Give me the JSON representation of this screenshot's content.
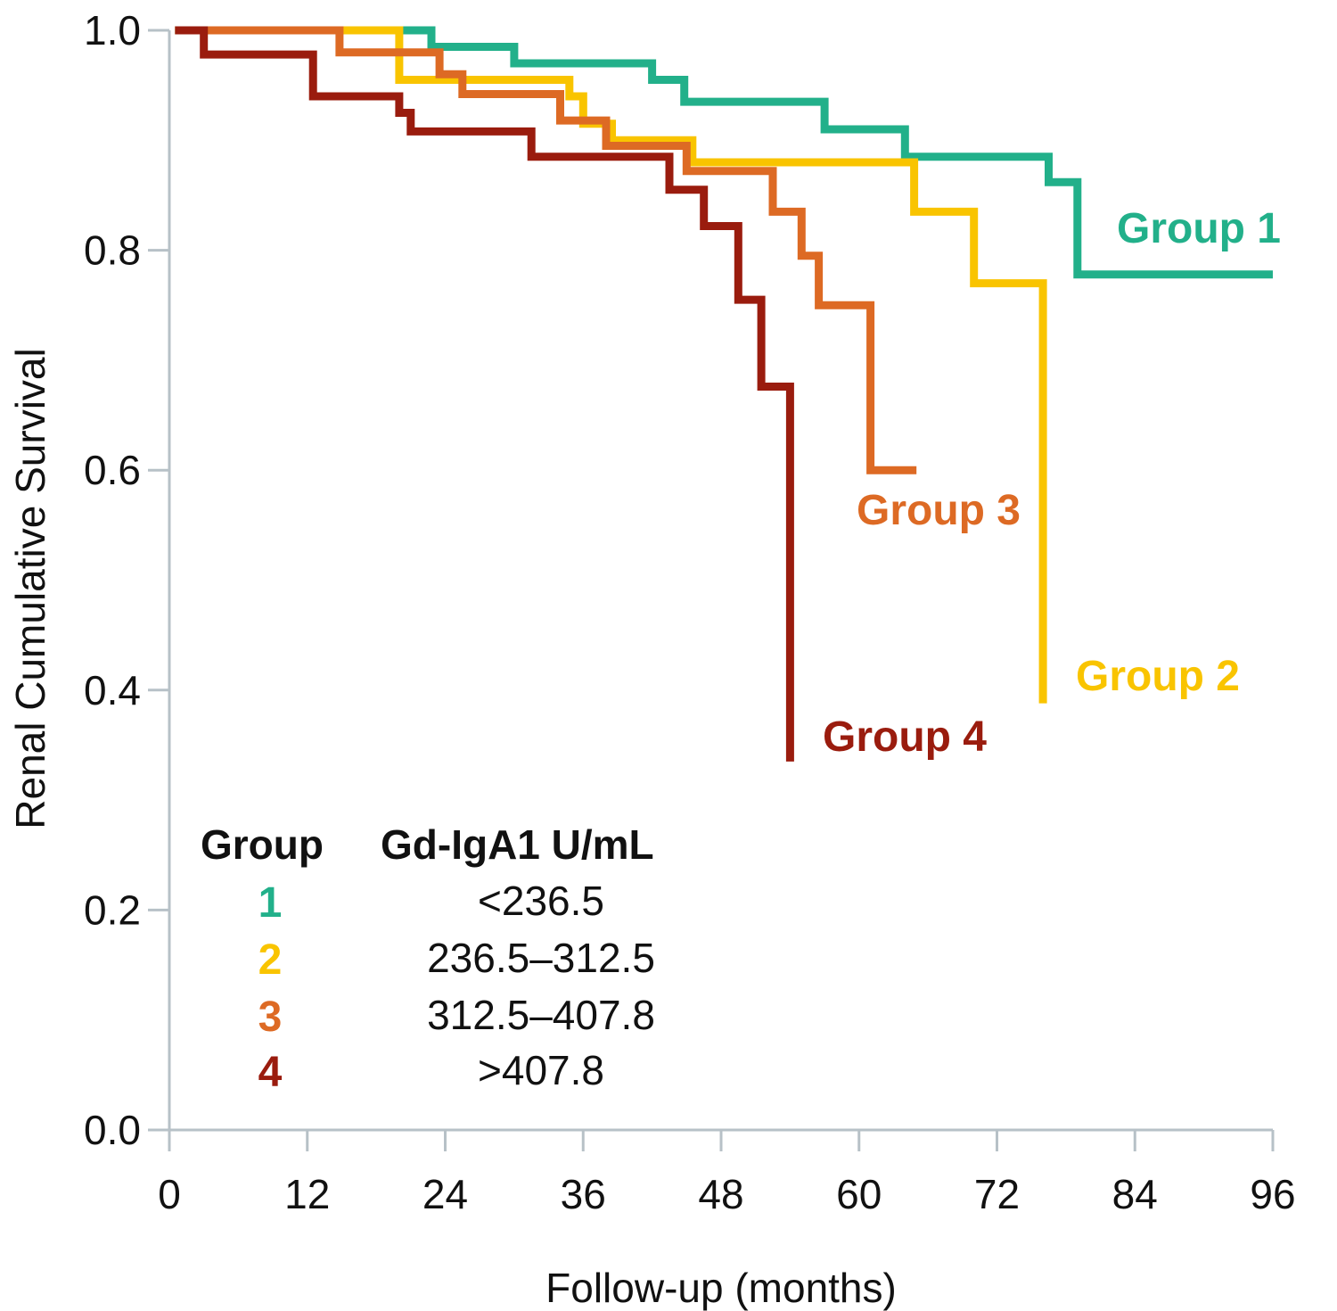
{
  "chart_data": {
    "type": "line",
    "subtype": "kaplan-meier-step",
    "title": "",
    "xlabel": "Follow-up (months)",
    "ylabel": "Renal Cumulative Survival",
    "xlim": [
      0,
      96
    ],
    "ylim": [
      0,
      1.0
    ],
    "xticks": [
      0,
      12,
      24,
      36,
      48,
      60,
      72,
      84,
      96
    ],
    "xtick_labels": [
      "0",
      "12",
      "24",
      "36",
      "48",
      "60",
      "72",
      "84",
      "96"
    ],
    "yticks": [
      0,
      0.2,
      0.4,
      0.6,
      0.8,
      1.0
    ],
    "ytick_labels": [
      "0.0",
      "0.2",
      "0.4",
      "0.6",
      "0.8",
      "1.0"
    ],
    "grid": false,
    "series": [
      {
        "name": "Group 1",
        "label": "Group 1",
        "color": "#22b08a",
        "points": [
          [
            0.5,
            1.0
          ],
          [
            22.8,
            1.0
          ],
          [
            22.8,
            0.985
          ],
          [
            30,
            0.985
          ],
          [
            30,
            0.97
          ],
          [
            42,
            0.97
          ],
          [
            42,
            0.955
          ],
          [
            44.8,
            0.955
          ],
          [
            44.8,
            0.935
          ],
          [
            57,
            0.935
          ],
          [
            57,
            0.91
          ],
          [
            64,
            0.91
          ],
          [
            64,
            0.885
          ],
          [
            76.5,
            0.885
          ],
          [
            76.5,
            0.862
          ],
          [
            79,
            0.862
          ],
          [
            79,
            0.778
          ],
          [
            96,
            0.778
          ]
        ]
      },
      {
        "name": "Group 2",
        "label": "Group 2",
        "color": "#f9c400",
        "points": [
          [
            0.5,
            1.0
          ],
          [
            20,
            1.0
          ],
          [
            20,
            0.955
          ],
          [
            34.8,
            0.955
          ],
          [
            34.8,
            0.94
          ],
          [
            36,
            0.94
          ],
          [
            36,
            0.915
          ],
          [
            38.5,
            0.915
          ],
          [
            38.5,
            0.9
          ],
          [
            45.5,
            0.9
          ],
          [
            45.5,
            0.88
          ],
          [
            64.8,
            0.88
          ],
          [
            64.8,
            0.835
          ],
          [
            70,
            0.835
          ],
          [
            70,
            0.77
          ],
          [
            76,
            0.77
          ],
          [
            76,
            0.388
          ]
        ]
      },
      {
        "name": "Group 3",
        "label": "Group 3",
        "color": "#dd6a24",
        "points": [
          [
            0.5,
            1.0
          ],
          [
            14.8,
            1.0
          ],
          [
            14.8,
            0.98
          ],
          [
            23.5,
            0.98
          ],
          [
            23.5,
            0.96
          ],
          [
            25.5,
            0.96
          ],
          [
            25.5,
            0.942
          ],
          [
            34,
            0.942
          ],
          [
            34,
            0.918
          ],
          [
            38,
            0.918
          ],
          [
            38,
            0.895
          ],
          [
            45,
            0.895
          ],
          [
            45,
            0.872
          ],
          [
            52.5,
            0.872
          ],
          [
            52.5,
            0.835
          ],
          [
            55,
            0.835
          ],
          [
            55,
            0.795
          ],
          [
            56.5,
            0.795
          ],
          [
            56.5,
            0.75
          ],
          [
            61,
            0.75
          ],
          [
            61,
            0.6
          ],
          [
            65,
            0.6
          ]
        ]
      },
      {
        "name": "Group 4",
        "label": "Group 4",
        "color": "#9a1c0e",
        "points": [
          [
            0.5,
            1.0
          ],
          [
            3,
            1.0
          ],
          [
            3,
            0.978
          ],
          [
            12.5,
            0.978
          ],
          [
            12.5,
            0.94
          ],
          [
            20,
            0.94
          ],
          [
            20,
            0.925
          ],
          [
            21,
            0.925
          ],
          [
            21,
            0.908
          ],
          [
            31.5,
            0.908
          ],
          [
            31.5,
            0.885
          ],
          [
            43.5,
            0.885
          ],
          [
            43.5,
            0.855
          ],
          [
            46.5,
            0.855
          ],
          [
            46.5,
            0.822
          ],
          [
            49.5,
            0.822
          ],
          [
            49.5,
            0.755
          ],
          [
            51.5,
            0.755
          ],
          [
            51.5,
            0.676
          ],
          [
            54,
            0.676
          ],
          [
            54,
            0.335
          ]
        ]
      }
    ],
    "legend": {
      "placement": "bottom-left",
      "header_group": "Group",
      "header_value": "Gd-IgA1 U/mL",
      "rows": [
        {
          "num": "1",
          "range": "<236.5",
          "color": "#22b08a"
        },
        {
          "num": "2",
          "range": "236.5–312.5",
          "color": "#f9c400"
        },
        {
          "num": "3",
          "range": "312.5–407.8",
          "color": "#dd6a24"
        },
        {
          "num": "4",
          "range": ">407.8",
          "color": "#9a1c0e"
        }
      ]
    },
    "axis_color": "#b7c1c7"
  }
}
